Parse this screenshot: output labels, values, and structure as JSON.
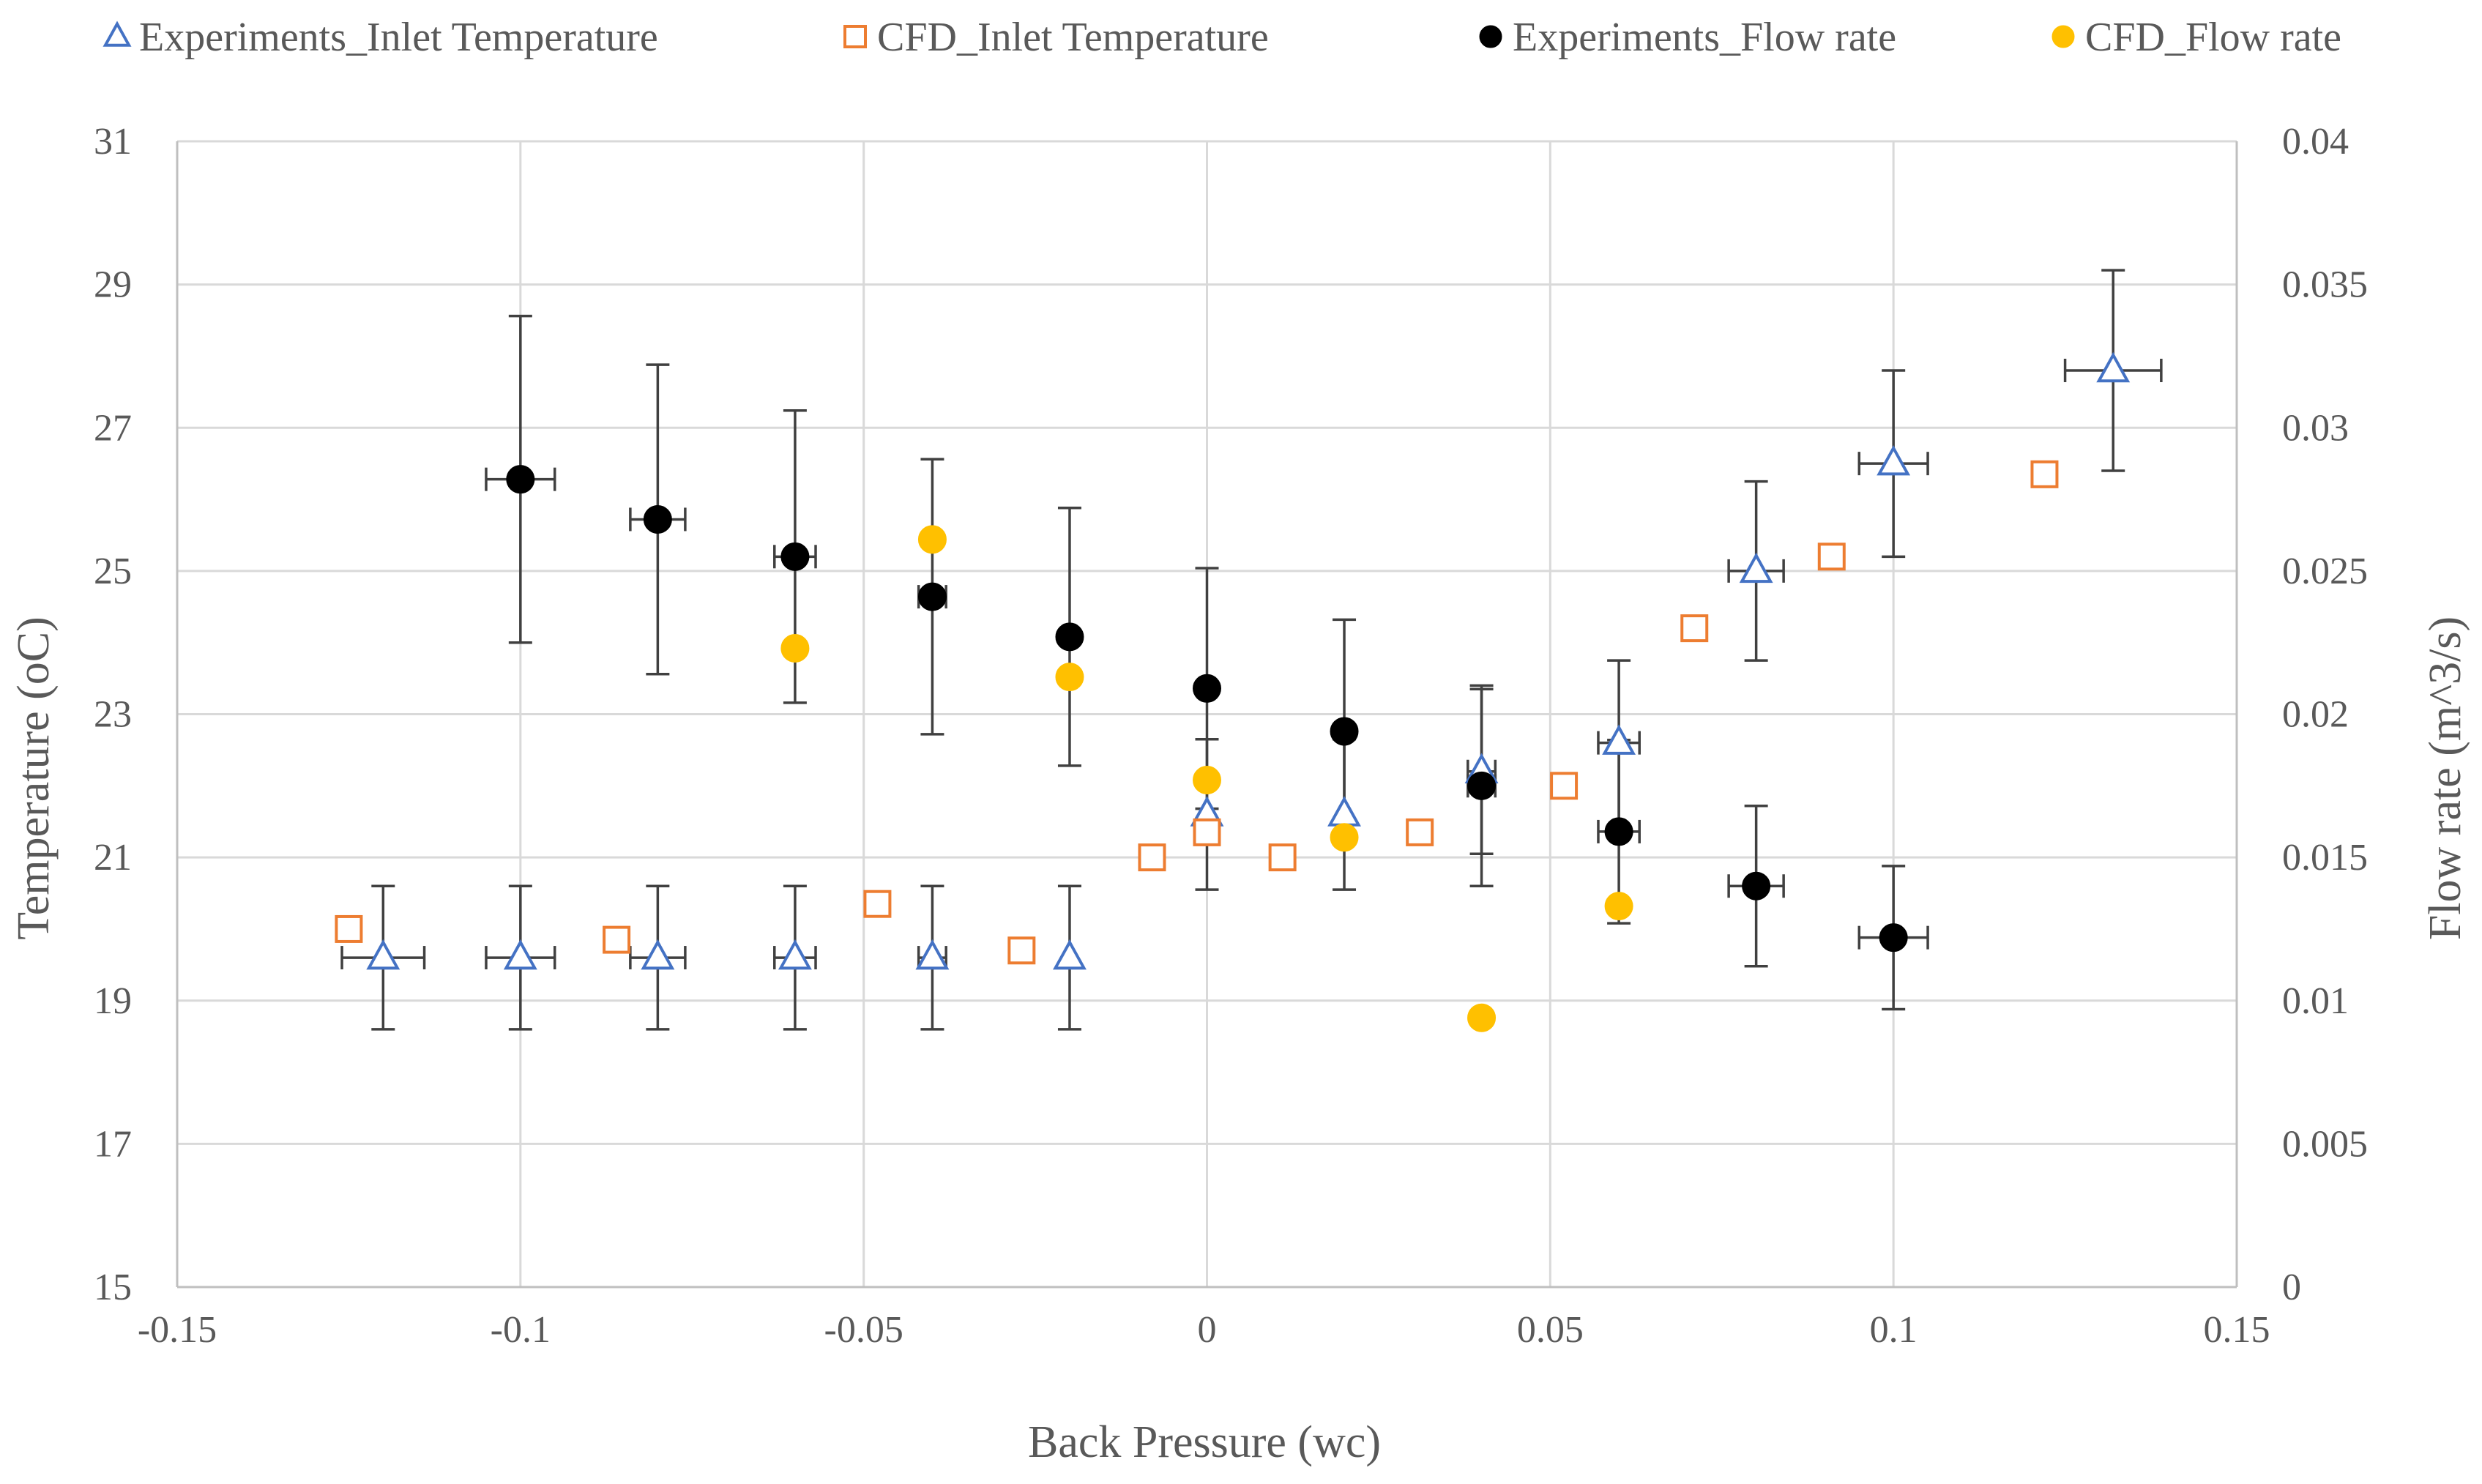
{
  "chart_data": {
    "type": "scatter",
    "title": "",
    "xlabel": "Back Pressure (wc)",
    "ylabel": "Temperature (oC)",
    "y2label": "Flow rate (m^3/s)",
    "xlim": [
      -0.15,
      0.15
    ],
    "ylim": [
      15,
      31
    ],
    "y2lim": [
      0,
      0.04
    ],
    "grid": true,
    "legend_position": "top",
    "x_ticks": [
      -0.15,
      -0.1,
      -0.05,
      0,
      0.05,
      0.1,
      0.15
    ],
    "x_tick_labels": [
      "-0.15",
      "-0.1",
      "-0.05",
      "0",
      "0.05",
      "0.1",
      "0.15"
    ],
    "y_ticks": [
      15,
      17,
      19,
      21,
      23,
      25,
      27,
      29,
      31
    ],
    "y_tick_labels": [
      "15",
      "17",
      "19",
      "21",
      "23",
      "25",
      "27",
      "29",
      "31"
    ],
    "y2_ticks": [
      0,
      0.005,
      0.01,
      0.015,
      0.02,
      0.025,
      0.03,
      0.035,
      0.04
    ],
    "y2_tick_labels": [
      "0",
      "0.005",
      "0.01",
      "0.015",
      "0.02",
      "0.025",
      "0.03",
      "0.035",
      "0.04"
    ],
    "series": [
      {
        "name": "Experiments_Inlet Temperature",
        "axis": "left",
        "marker": "triangle-open",
        "color": "#4472C4",
        "error_bar_color": "#404040",
        "points": [
          {
            "x": -0.12,
            "y": 19.6,
            "y_err": 1.0,
            "x_err": 0.006
          },
          {
            "x": -0.1,
            "y": 19.6,
            "y_err": 1.0,
            "x_err": 0.005
          },
          {
            "x": -0.08,
            "y": 19.6,
            "y_err": 1.0,
            "x_err": 0.004
          },
          {
            "x": -0.06,
            "y": 19.6,
            "y_err": 1.0,
            "x_err": 0.003
          },
          {
            "x": -0.04,
            "y": 19.6,
            "y_err": 1.0,
            "x_err": 0.002
          },
          {
            "x": -0.02,
            "y": 19.6,
            "y_err": 1.0,
            "x_err": 0.0
          },
          {
            "x": 0.0,
            "y": 21.6,
            "y_err": 1.05,
            "x_err": 0.0
          },
          {
            "x": 0.02,
            "y": 21.6,
            "y_err": 1.05,
            "x_err": 0.0
          },
          {
            "x": 0.04,
            "y": 22.2,
            "y_err": 1.15,
            "x_err": 0.002
          },
          {
            "x": 0.06,
            "y": 22.6,
            "y_err": 1.15,
            "x_err": 0.003
          },
          {
            "x": 0.08,
            "y": 25.0,
            "y_err": 1.25,
            "x_err": 0.004
          },
          {
            "x": 0.1,
            "y": 26.5,
            "y_err": 1.3,
            "x_err": 0.005
          },
          {
            "x": 0.132,
            "y": 27.8,
            "y_err": 1.4,
            "x_err": 0.007
          }
        ]
      },
      {
        "name": "CFD_Inlet Temperature",
        "axis": "left",
        "marker": "square-open",
        "color": "#ED7D31",
        "points": [
          {
            "x": -0.125,
            "y": 20.0
          },
          {
            "x": -0.086,
            "y": 19.85
          },
          {
            "x": -0.048,
            "y": 20.35
          },
          {
            "x": -0.027,
            "y": 19.7
          },
          {
            "x": -0.008,
            "y": 21.0
          },
          {
            "x": 0.0,
            "y": 21.35
          },
          {
            "x": 0.011,
            "y": 21.0
          },
          {
            "x": 0.031,
            "y": 21.35
          },
          {
            "x": 0.052,
            "y": 22.0
          },
          {
            "x": 0.071,
            "y": 24.2
          },
          {
            "x": 0.091,
            "y": 25.2
          },
          {
            "x": 0.122,
            "y": 26.35
          }
        ]
      },
      {
        "name": "Experiments_Flow rate",
        "axis": "right",
        "marker": "circle",
        "color": "#000000",
        "error_bar_color": "#404040",
        "points": [
          {
            "x": -0.1,
            "y": 0.0282,
            "y_err": 0.0057,
            "x_err": 0.005
          },
          {
            "x": -0.08,
            "y": 0.0268,
            "y_err": 0.0054,
            "x_err": 0.004
          },
          {
            "x": -0.06,
            "y": 0.0255,
            "y_err": 0.0051,
            "x_err": 0.003
          },
          {
            "x": -0.04,
            "y": 0.0241,
            "y_err": 0.0048,
            "x_err": 0.002
          },
          {
            "x": -0.02,
            "y": 0.0227,
            "y_err": 0.0045,
            "x_err": 0.0
          },
          {
            "x": 0.0,
            "y": 0.0209,
            "y_err": 0.0042,
            "x_err": 0.0
          },
          {
            "x": 0.02,
            "y": 0.0194,
            "y_err": 0.0039,
            "x_err": 0.0
          },
          {
            "x": 0.04,
            "y": 0.0175,
            "y_err": 0.0035,
            "x_err": 0.002
          },
          {
            "x": 0.06,
            "y": 0.0159,
            "y_err": 0.0032,
            "x_err": 0.003
          },
          {
            "x": 0.08,
            "y": 0.014,
            "y_err": 0.0028,
            "x_err": 0.004
          },
          {
            "x": 0.1,
            "y": 0.0122,
            "y_err": 0.0025,
            "x_err": 0.005
          }
        ]
      },
      {
        "name": "CFD_Flow rate",
        "axis": "right",
        "marker": "circle",
        "color": "#FFC000",
        "points": [
          {
            "x": -0.06,
            "y": 0.0223
          },
          {
            "x": -0.04,
            "y": 0.0261
          },
          {
            "x": -0.02,
            "y": 0.0213
          },
          {
            "x": 0.0,
            "y": 0.0177
          },
          {
            "x": 0.02,
            "y": 0.0157
          },
          {
            "x": 0.04,
            "y": 0.0094
          },
          {
            "x": 0.06,
            "y": 0.0133
          }
        ]
      }
    ]
  }
}
